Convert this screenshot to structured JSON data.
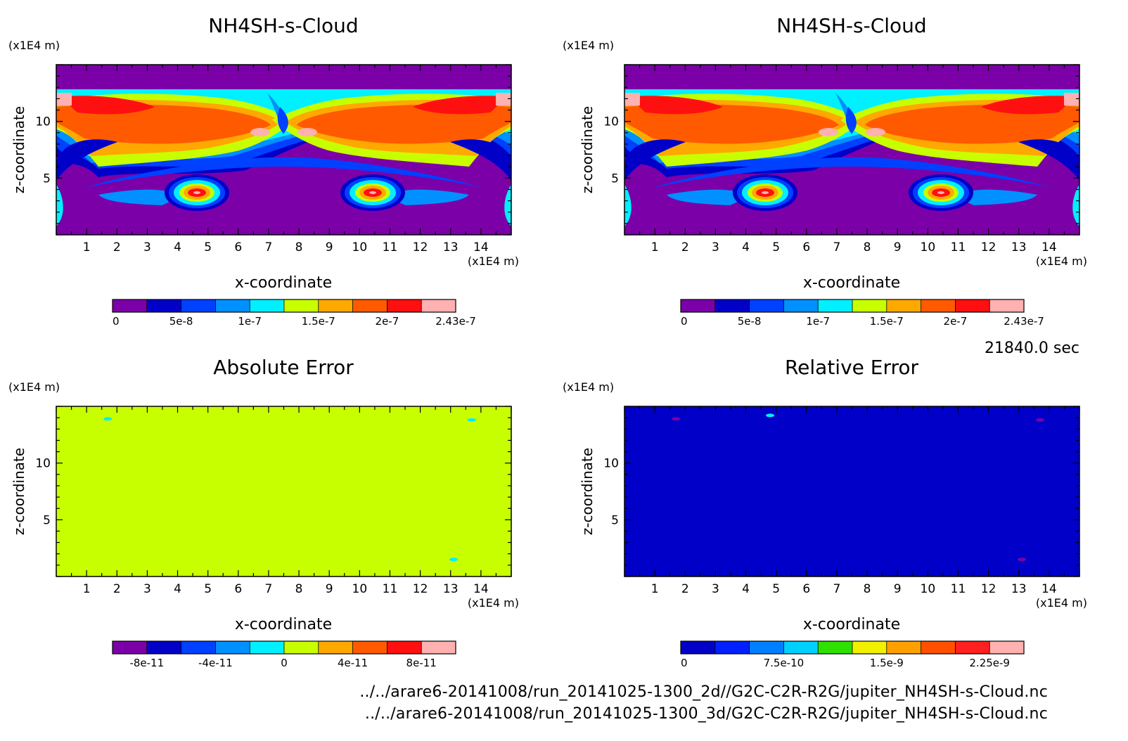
{
  "time_label": "21840.0 sec",
  "files": [
    "../../arare6-20141008/run_20141025-1300_2d//G2C-C2R-R2G/jupiter_NH4SH-s-Cloud.nc",
    "../../arare6-20141008/run_20141025-1300_3d/G2C-C2R-R2G/jupiter_NH4SH-s-Cloud.nc"
  ],
  "chart_data": [
    {
      "type": "heatmap",
      "title": "NH4SH-s-Cloud",
      "xlabel": "x-coordinate",
      "ylabel": "z-coordinate",
      "x_unit": "(x1E4 m)",
      "y_unit": "(x1E4 m)",
      "xlim": [
        0,
        15
      ],
      "ylim": [
        0,
        15
      ],
      "x_ticks": [
        "1",
        "2",
        "3",
        "4",
        "5",
        "6",
        "7",
        "8",
        "9",
        "10",
        "11",
        "12",
        "13",
        "14"
      ],
      "y_ticks": [
        "5",
        "10"
      ],
      "colorbar": {
        "colors": [
          "#7b00a8",
          "#0000c8",
          "#0040ff",
          "#0090ff",
          "#00f0ff",
          "#c8ff00",
          "#ffa800",
          "#ff5a00",
          "#ff1010",
          "#ffb0b0"
        ],
        "tick_labels": [
          "0",
          "5e-8",
          "1e-7",
          "1.5e-7",
          "2e-7",
          "2.43e-7"
        ]
      },
      "grid": false
    },
    {
      "type": "heatmap",
      "title": "NH4SH-s-Cloud",
      "xlabel": "x-coordinate",
      "ylabel": "z-coordinate",
      "x_unit": "(x1E4 m)",
      "y_unit": "(x1E4 m)",
      "xlim": [
        0,
        15
      ],
      "ylim": [
        0,
        15
      ],
      "x_ticks": [
        "1",
        "2",
        "3",
        "4",
        "5",
        "6",
        "7",
        "8",
        "9",
        "10",
        "11",
        "12",
        "13",
        "14"
      ],
      "y_ticks": [
        "5",
        "10"
      ],
      "colorbar": {
        "colors": [
          "#7b00a8",
          "#0000c8",
          "#0040ff",
          "#0090ff",
          "#00f0ff",
          "#c8ff00",
          "#ffa800",
          "#ff5a00",
          "#ff1010",
          "#ffb0b0"
        ],
        "tick_labels": [
          "0",
          "5e-8",
          "1e-7",
          "1.5e-7",
          "2e-7",
          "2.43e-7"
        ]
      },
      "grid": false
    },
    {
      "type": "heatmap",
      "title": "Absolute Error",
      "xlabel": "x-coordinate",
      "ylabel": "z-coordinate",
      "x_unit": "(x1E4 m)",
      "y_unit": "(x1E4 m)",
      "xlim": [
        0,
        15
      ],
      "ylim": [
        0,
        15
      ],
      "x_ticks": [
        "1",
        "2",
        "3",
        "4",
        "5",
        "6",
        "7",
        "8",
        "9",
        "10",
        "11",
        "12",
        "13",
        "14"
      ],
      "y_ticks": [
        "5",
        "10"
      ],
      "fill": "#c8ff00",
      "spots": [
        {
          "x": 1.7,
          "z": 13.9,
          "color": "#00f0ff"
        },
        {
          "x": 13.7,
          "z": 13.8,
          "color": "#00f0ff"
        },
        {
          "x": 13.1,
          "z": 1.5,
          "color": "#00f0ff"
        }
      ],
      "colorbar": {
        "colors": [
          "#7b00a8",
          "#0000c8",
          "#0040ff",
          "#0090ff",
          "#00f0ff",
          "#c8ff00",
          "#ffa800",
          "#ff5a00",
          "#ff1010",
          "#ffb0b0"
        ],
        "tick_labels": [
          "-8e-11",
          "-4e-11",
          "0",
          "4e-11",
          "8e-11"
        ]
      },
      "grid": false
    },
    {
      "type": "heatmap",
      "title": "Relative Error",
      "xlabel": "x-coordinate",
      "ylabel": "z-coordinate",
      "x_unit": "(x1E4 m)",
      "y_unit": "(x1E4 m)",
      "xlim": [
        0,
        15
      ],
      "ylim": [
        0,
        15
      ],
      "x_ticks": [
        "1",
        "2",
        "3",
        "4",
        "5",
        "6",
        "7",
        "8",
        "9",
        "10",
        "11",
        "12",
        "13",
        "14"
      ],
      "y_ticks": [
        "5",
        "10"
      ],
      "fill": "#0000c8",
      "spots": [
        {
          "x": 1.7,
          "z": 13.9,
          "color": "#7b00a8"
        },
        {
          "x": 4.8,
          "z": 14.2,
          "color": "#00f0ff"
        },
        {
          "x": 13.7,
          "z": 13.8,
          "color": "#7b00a8"
        },
        {
          "x": 13.1,
          "z": 1.5,
          "color": "#7b00a8"
        }
      ],
      "colorbar": {
        "colors": [
          "#0000c8",
          "#0020ff",
          "#0080ff",
          "#00d0ff",
          "#30e000",
          "#f0f000",
          "#ffa000",
          "#ff5000",
          "#ff2020",
          "#ffb0b0"
        ],
        "tick_labels": [
          "0",
          "7.5e-10",
          "1.5e-9",
          "2.25e-9"
        ]
      },
      "grid": false
    }
  ]
}
